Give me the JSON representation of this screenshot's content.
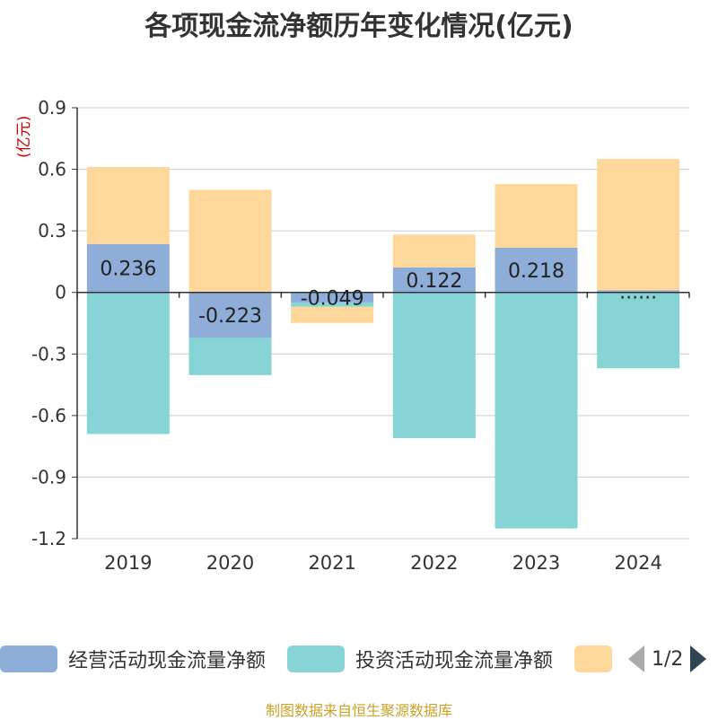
{
  "title": "各项现金流净额历年变化情况(亿元)",
  "unit_label": "(亿元)",
  "source": "制图数据来自恒生聚源数据库",
  "legend": {
    "items": [
      {
        "label": "经营活动现金流量净额",
        "color": "#8eadd9"
      },
      {
        "label": "投资活动现金流量净额",
        "color": "#86d4d6"
      },
      {
        "label": "",
        "color": "#fed89a"
      }
    ],
    "page": "1/2"
  },
  "chart_data": {
    "type": "bar",
    "stacked": true,
    "categories": [
      "2019",
      "2020",
      "2021",
      "2022",
      "2023",
      "2024"
    ],
    "ylim": [
      -1.2,
      0.9
    ],
    "yticks": [
      "0.9",
      "0.6",
      "0.3",
      "0",
      "-0.3",
      "-0.6",
      "-0.9",
      "-1.2"
    ],
    "grid": true,
    "series": [
      {
        "name": "经营活动现金流量净额",
        "color": "#8eadd9",
        "values": [
          0.236,
          -0.223,
          -0.049,
          0.122,
          0.218,
          0.01
        ],
        "labels": [
          "0.236",
          "-0.223",
          "-0.049",
          "0.122",
          "0.218",
          "......"
        ]
      },
      {
        "name": "投资活动现金流量净额",
        "color": "#86d4d6",
        "values": [
          -0.69,
          -0.18,
          -0.02,
          -0.71,
          -1.15,
          -0.37
        ]
      },
      {
        "color": "#fed89a",
        "values": [
          0.375,
          0.5,
          -0.08,
          0.16,
          0.31,
          0.64
        ]
      }
    ]
  }
}
